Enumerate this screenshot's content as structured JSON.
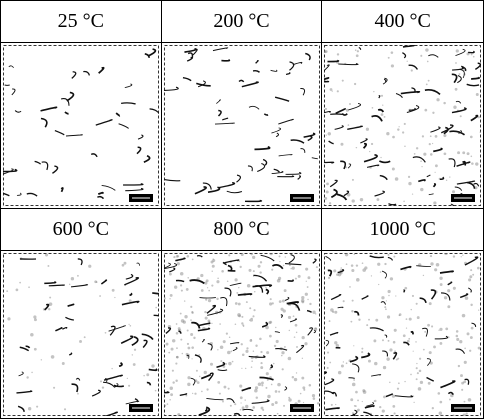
{
  "panels": [
    {
      "label": "25 °C"
    },
    {
      "label": "200 °C"
    },
    {
      "label": "400 °C"
    },
    {
      "label": "600 °C"
    },
    {
      "label": "800 °C"
    },
    {
      "label": "1000 °C"
    }
  ]
}
